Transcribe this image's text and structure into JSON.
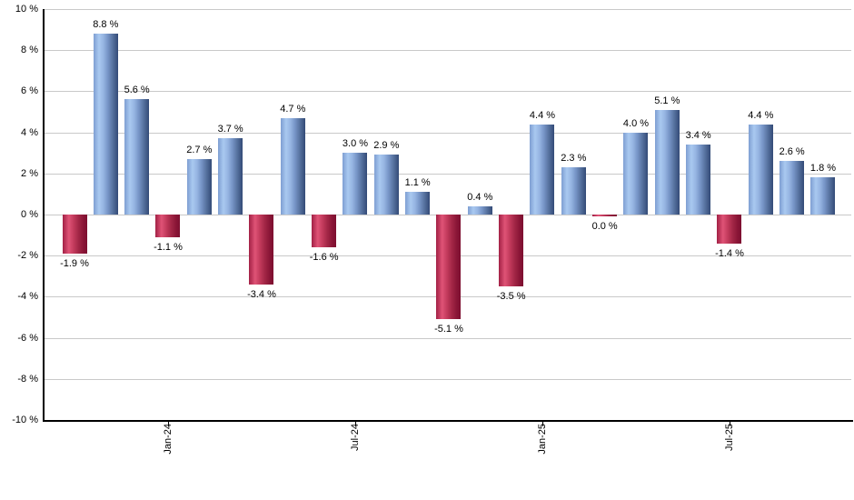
{
  "chart_data": {
    "type": "bar",
    "title": "",
    "xlabel": "",
    "ylabel": "",
    "ylim": [
      -10,
      10
    ],
    "grid": "horizontal-only",
    "legend": "none",
    "values": [
      -1.9,
      8.8,
      5.6,
      -1.1,
      2.7,
      3.7,
      -3.4,
      4.7,
      -1.6,
      3.0,
      2.9,
      1.1,
      -5.1,
      0.4,
      -3.5,
      4.4,
      2.3,
      0.0,
      4.0,
      5.1,
      3.4,
      -1.4,
      4.4,
      2.6,
      1.8
    ],
    "bar_labels": [
      "-1.9 %",
      "8.8 %",
      "5.6 %",
      "-1.1 %",
      "2.7 %",
      "3.7 %",
      "-3.4 %",
      "4.7 %",
      "-1.6 %",
      "3.0 %",
      "2.9 %",
      "1.1 %",
      "-5.1 %",
      "0.4 %",
      "-3.5 %",
      "4.4 %",
      "2.3 %",
      "0.0 %",
      "4.0 %",
      "5.1 %",
      "3.4 %",
      "-1.4 %",
      "4.4 %",
      "2.6 %",
      "1.8 %"
    ],
    "x_tick_labels": [
      {
        "label": "Jan-24",
        "index": 3
      },
      {
        "label": "Jul-24",
        "index": 9
      },
      {
        "label": "Jan-25",
        "index": 15
      },
      {
        "label": "Jul-25",
        "index": 21
      }
    ],
    "y_tick_values": [
      10,
      8,
      6,
      4,
      2,
      0,
      -2,
      -4,
      -6,
      -8,
      -10
    ],
    "y_tick_labels": [
      "10 %",
      "8 %",
      "6 %",
      "4 %",
      "2 %",
      "0 %",
      "-2 %",
      "-4 %",
      "-6 %",
      "-8 %",
      "-10 %"
    ],
    "colors": {
      "positive_bar_gradient": [
        "#7e9ed2",
        "#a9c9f0",
        "#96b5e2",
        "#7795c7",
        "#56729f",
        "#334a77"
      ],
      "positive_gradient_stops_pct": [
        0,
        22,
        40,
        58,
        78,
        100
      ],
      "negative_bar_gradient": [
        "#a22045",
        "#df5376",
        "#c23a5c",
        "#a22646",
        "#891536",
        "#7d0f30"
      ],
      "negative_gradient_stops_pct": [
        0,
        25,
        45,
        65,
        85,
        100
      ],
      "gridline": "#c9c9c9",
      "axis": "#000000",
      "label_text": "#000000",
      "background": "#ffffff"
    }
  }
}
